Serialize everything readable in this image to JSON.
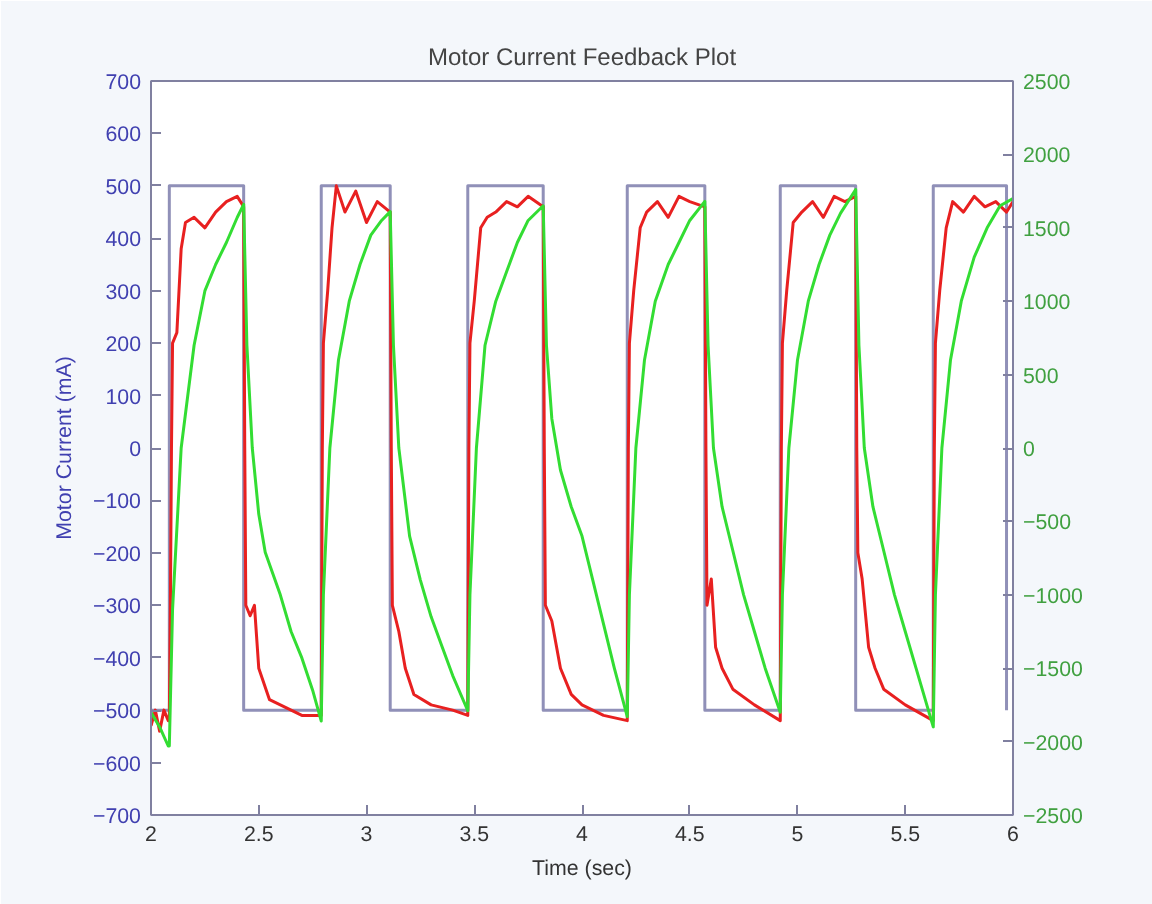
{
  "chart_data": {
    "type": "line",
    "title": "Motor Current Feedback Plot",
    "xlabel": "Time (sec)",
    "ylabel": "Motor Current (mA)",
    "xlim": [
      2,
      6
    ],
    "xticks": [
      2,
      2.5,
      3,
      3.5,
      4,
      4.5,
      5,
      5.5,
      6
    ],
    "ylim": [
      -700,
      700
    ],
    "yticks": [
      -700,
      -600,
      -500,
      -400,
      -300,
      -200,
      -100,
      0,
      100,
      200,
      300,
      400,
      500,
      600,
      700
    ],
    "y2lim": [
      -2500,
      2500
    ],
    "y2ticks": [
      -2500,
      -2000,
      -1500,
      -1000,
      -500,
      0,
      500,
      1000,
      1500,
      2000,
      2500
    ],
    "grid": false,
    "series": [
      {
        "color": "#9090b8",
        "x": [
          2.0,
          2.085,
          2.085,
          2.43,
          2.43,
          2.79,
          2.79,
          3.11,
          3.11,
          3.47,
          3.47,
          3.82,
          3.82,
          4.21,
          4.21,
          4.57,
          4.57,
          4.92,
          4.92,
          5.27,
          5.27,
          5.63,
          5.63,
          5.97,
          5.97
        ],
        "values": [
          -500,
          -500,
          500,
          500,
          -500,
          -500,
          500,
          500,
          -500,
          -500,
          500,
          500,
          -500,
          -500,
          500,
          500,
          -500,
          -500,
          500,
          500,
          -500,
          -500,
          500,
          500,
          -500
        ]
      },
      {
        "color": "#e82020",
        "x": [
          2.0,
          2.02,
          2.04,
          2.06,
          2.08,
          2.085,
          2.09,
          2.095,
          2.1,
          2.12,
          2.14,
          2.16,
          2.2,
          2.25,
          2.3,
          2.35,
          2.4,
          2.43,
          2.435,
          2.44,
          2.46,
          2.48,
          2.5,
          2.55,
          2.6,
          2.65,
          2.7,
          2.79,
          2.795,
          2.8,
          2.82,
          2.84,
          2.86,
          2.9,
          2.95,
          3.0,
          3.05,
          3.11,
          3.115,
          3.12,
          3.15,
          3.18,
          3.22,
          3.3,
          3.4,
          3.47,
          3.475,
          3.48,
          3.5,
          3.53,
          3.56,
          3.6,
          3.65,
          3.7,
          3.75,
          3.82,
          3.825,
          3.83,
          3.86,
          3.9,
          3.95,
          4.0,
          4.1,
          4.21,
          4.215,
          4.22,
          4.24,
          4.27,
          4.3,
          4.35,
          4.4,
          4.45,
          4.5,
          4.57,
          4.575,
          4.58,
          4.6,
          4.62,
          4.65,
          4.7,
          4.8,
          4.92,
          4.925,
          4.93,
          4.95,
          4.98,
          5.02,
          5.07,
          5.12,
          5.17,
          5.22,
          5.27,
          5.275,
          5.28,
          5.3,
          5.33,
          5.36,
          5.4,
          5.5,
          5.63,
          5.635,
          5.64,
          5.66,
          5.69,
          5.72,
          5.77,
          5.82,
          5.87,
          5.92,
          5.97,
          6.0
        ],
        "values": [
          -530,
          -500,
          -540,
          -500,
          -520,
          -520,
          -300,
          0,
          200,
          220,
          380,
          430,
          440,
          420,
          450,
          470,
          480,
          460,
          0,
          -300,
          -320,
          -300,
          -420,
          -480,
          -490,
          -500,
          -510,
          -510,
          0,
          200,
          300,
          420,
          500,
          450,
          490,
          430,
          470,
          450,
          0,
          -300,
          -350,
          -420,
          -470,
          -490,
          -500,
          -510,
          0,
          200,
          280,
          420,
          440,
          450,
          470,
          460,
          480,
          460,
          0,
          -300,
          -330,
          -420,
          -470,
          -490,
          -510,
          -520,
          0,
          200,
          300,
          420,
          450,
          470,
          440,
          480,
          470,
          460,
          0,
          -300,
          -250,
          -380,
          -420,
          -460,
          -490,
          -520,
          0,
          200,
          300,
          430,
          450,
          470,
          440,
          480,
          470,
          480,
          0,
          -200,
          -250,
          -380,
          -420,
          -460,
          -490,
          -520,
          0,
          200,
          300,
          420,
          470,
          450,
          480,
          460,
          470,
          450,
          470
        ]
      },
      {
        "color": "#33dd33",
        "axis": "y2",
        "x": [
          2.0,
          2.04,
          2.08,
          2.085,
          2.1,
          2.14,
          2.2,
          2.25,
          2.3,
          2.35,
          2.4,
          2.43,
          2.445,
          2.47,
          2.5,
          2.53,
          2.6,
          2.65,
          2.7,
          2.75,
          2.79,
          2.8,
          2.83,
          2.87,
          2.92,
          2.97,
          3.02,
          3.07,
          3.11,
          3.125,
          3.15,
          3.2,
          3.25,
          3.3,
          3.35,
          3.4,
          3.47,
          3.48,
          3.51,
          3.55,
          3.6,
          3.65,
          3.7,
          3.75,
          3.82,
          3.835,
          3.86,
          3.9,
          3.95,
          4.0,
          4.05,
          4.1,
          4.15,
          4.21,
          4.22,
          4.25,
          4.29,
          4.34,
          4.4,
          4.45,
          4.5,
          4.57,
          4.585,
          4.61,
          4.65,
          4.7,
          4.75,
          4.8,
          4.85,
          4.92,
          4.93,
          4.96,
          5.0,
          5.05,
          5.1,
          5.15,
          5.2,
          5.27,
          5.285,
          5.31,
          5.35,
          5.4,
          5.45,
          5.5,
          5.55,
          5.63,
          5.64,
          5.67,
          5.71,
          5.76,
          5.82,
          5.88,
          5.94,
          6.0
        ],
        "values": [
          -1800,
          -1900,
          -2030,
          -2030,
          -1100,
          0,
          700,
          1070,
          1250,
          1400,
          1570,
          1660,
          700,
          0,
          -450,
          -710,
          -1000,
          -1250,
          -1430,
          -1650,
          -1860,
          -1000,
          0,
          600,
          1000,
          1250,
          1450,
          1550,
          1610,
          700,
          0,
          -600,
          -900,
          -1150,
          -1350,
          -1550,
          -1790,
          -1000,
          0,
          700,
          1000,
          1200,
          1400,
          1550,
          1650,
          700,
          200,
          -150,
          -400,
          -600,
          -900,
          -1200,
          -1500,
          -1830,
          -1000,
          0,
          600,
          1000,
          1250,
          1400,
          1550,
          1680,
          700,
          0,
          -400,
          -700,
          -1000,
          -1250,
          -1500,
          -1800,
          -1000,
          0,
          600,
          1000,
          1250,
          1450,
          1600,
          1760,
          700,
          0,
          -400,
          -700,
          -1000,
          -1250,
          -1500,
          -1900,
          -1000,
          0,
          600,
          1000,
          1300,
          1500,
          1650,
          1700
        ]
      }
    ]
  }
}
